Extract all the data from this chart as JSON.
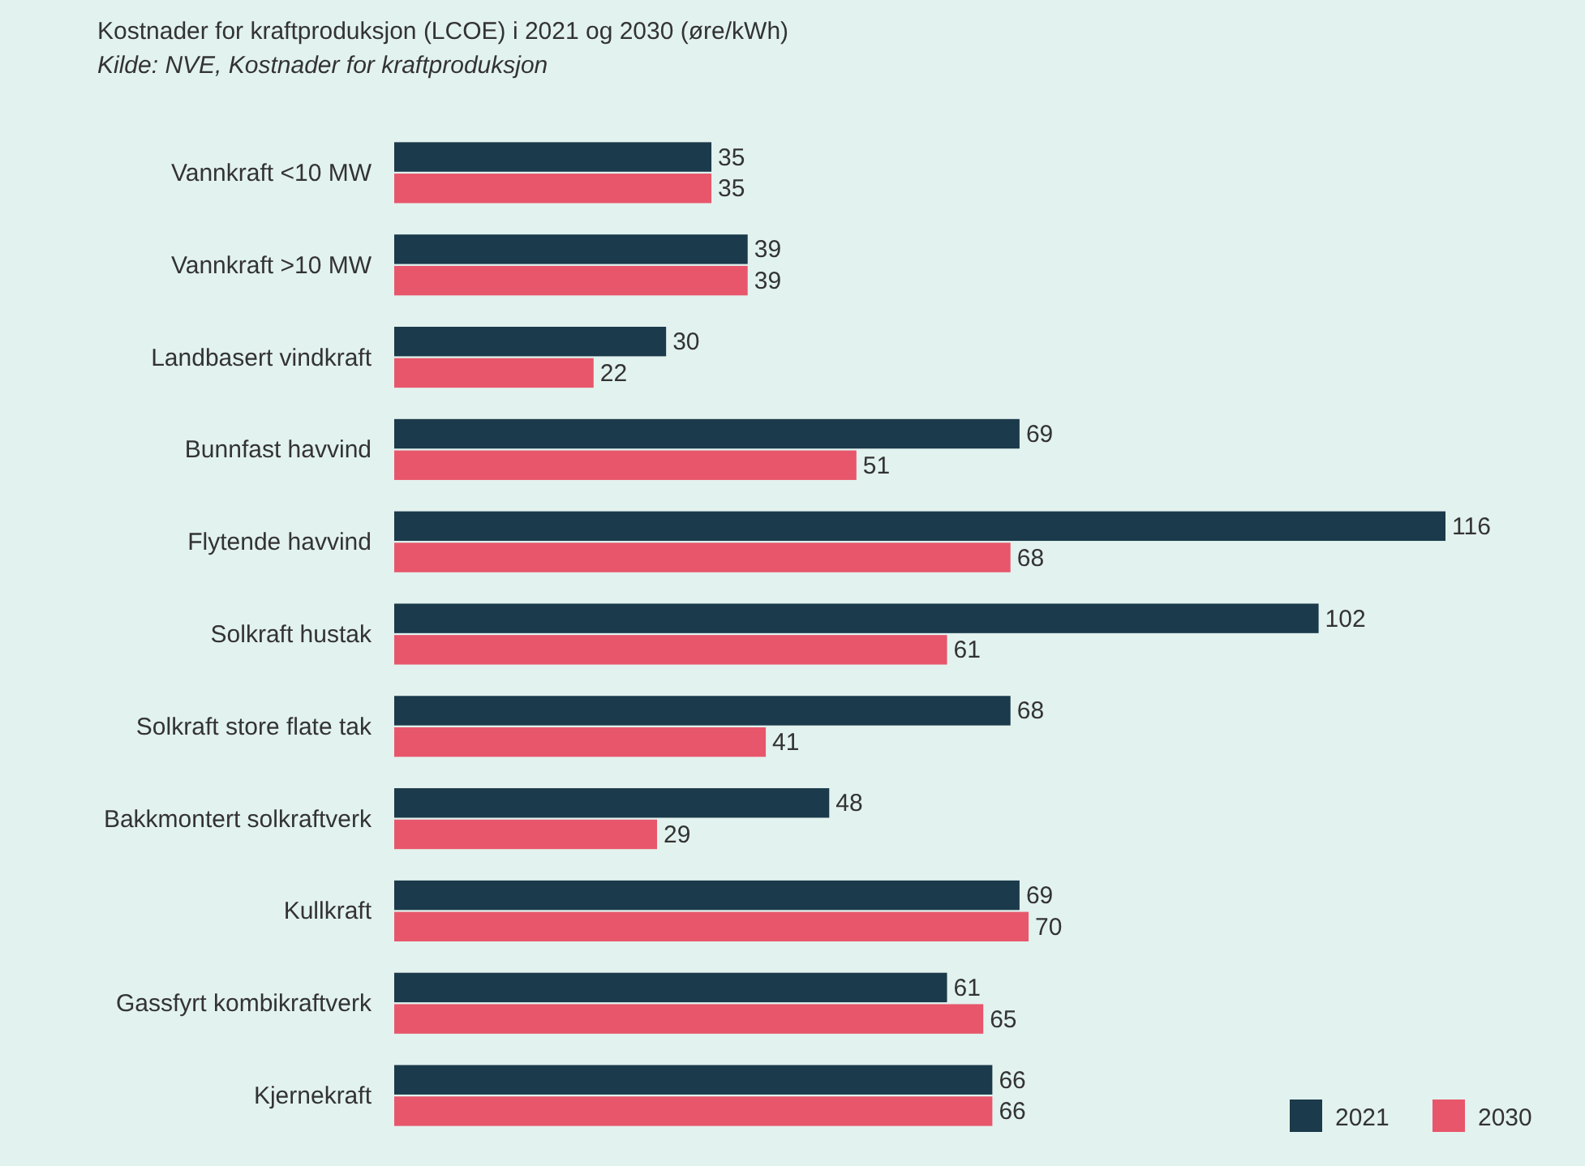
{
  "chart_data": {
    "type": "bar",
    "orientation": "horizontal",
    "title": "Kostnader for kraftproduksjon (LCOE) i 2021 og 2030 (øre/kWh)",
    "subtitle": "Kilde: NVE, Kostnader for kraftproduksjon",
    "categories": [
      "Vannkraft <10 MW",
      "Vannkraft >10 MW",
      "Landbasert vindkraft",
      "Bunnfast havvind",
      "Flytende havvind",
      "Solkraft hustak",
      "Solkraft store flate tak",
      "Bakkmontert solkraftverk",
      "Kullkraft",
      "Gassfyrt kombikraftverk",
      "Kjernekraft"
    ],
    "series": [
      {
        "name": "2021",
        "color": "#1b3a4b",
        "values": [
          35,
          39,
          30,
          69,
          116,
          102,
          68,
          48,
          69,
          61,
          66
        ]
      },
      {
        "name": "2030",
        "color": "#e8566b",
        "values": [
          35,
          39,
          22,
          51,
          68,
          61,
          41,
          29,
          70,
          65,
          66
        ]
      }
    ],
    "data_labels": true,
    "legend": "bottom right"
  }
}
